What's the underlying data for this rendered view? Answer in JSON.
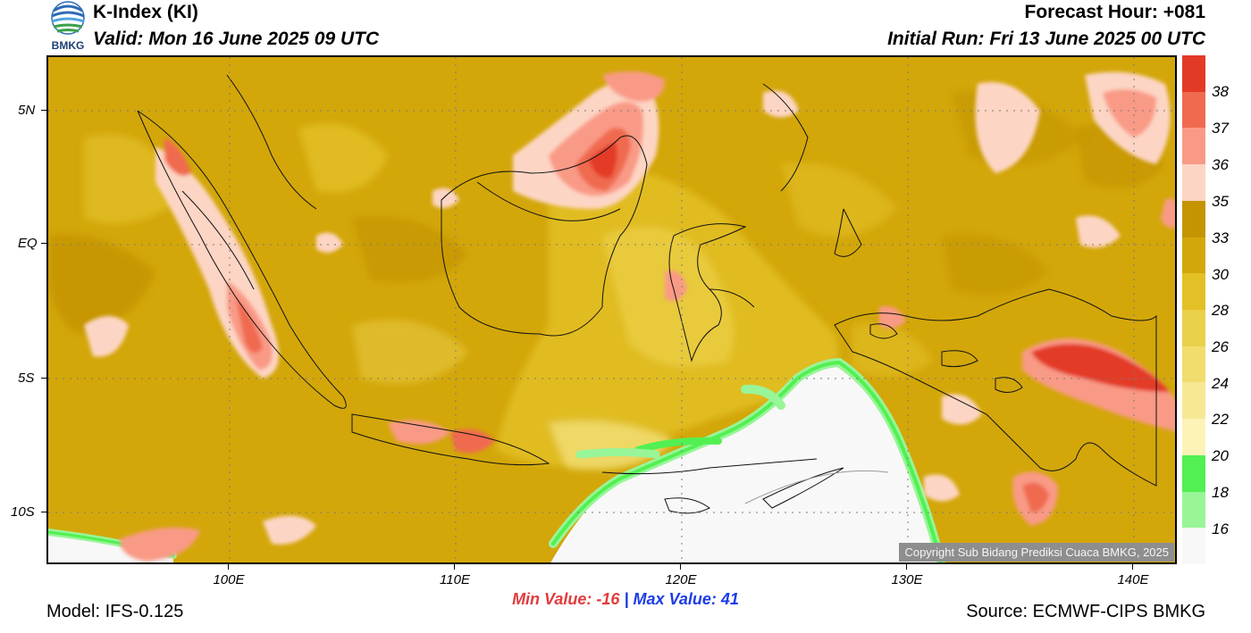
{
  "header": {
    "title": "K-Index (KI)",
    "valid": "Valid: Mon 16 June 2025 09 UTC",
    "forecast_hour": "Forecast Hour: +081",
    "initial_run": "Initial Run: Fri 13 June 2025 00 UTC",
    "logo_text": "BMKG"
  },
  "axes": {
    "lat_labels": [
      "5N",
      "EQ",
      "5S",
      "10S"
    ],
    "lon_labels": [
      "100E",
      "110E",
      "120E",
      "130E",
      "140E"
    ]
  },
  "colorbar": {
    "labels": [
      "38",
      "37",
      "36",
      "35",
      "33",
      "30",
      "28",
      "26",
      "24",
      "22",
      "20",
      "18",
      "16"
    ],
    "colors": [
      "#e33a26",
      "#f06a50",
      "#f99a86",
      "#fdd5c4",
      "#c49403",
      "#d3a70a",
      "#e3c026",
      "#ebd04a",
      "#f1dc6e",
      "#f7e894",
      "#fdf3b8",
      "#52f052",
      "#98f598",
      "#f8f8f8"
    ]
  },
  "copyright": "Copyright Sub Bidang Prediksi Cuaca BMKG, 2025",
  "stats": {
    "min_label": "Min Value:",
    "min_value": "-16",
    "separator": "|",
    "max_label": "Max Value:",
    "max_value": "41"
  },
  "footer": {
    "model": "Model: IFS-0.125",
    "source": "Source: ECMWF-CIPS BMKG"
  }
}
